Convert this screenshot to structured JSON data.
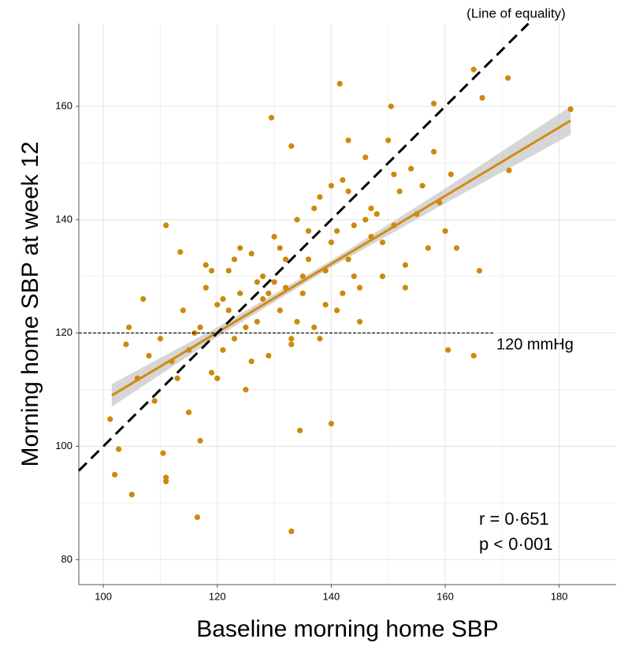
{
  "chart_data": {
    "type": "scatter",
    "x_label": "Baseline morning home SBP",
    "y_label": "Morning home SBP at week 12",
    "color": "#cc8a0c",
    "fit_color": "#d18b12",
    "band_color": "#c8c8c8",
    "xlim": [
      95.7,
      190
    ],
    "ylim": [
      75.6,
      174.6
    ],
    "xticks": [
      100,
      120,
      140,
      160,
      180
    ],
    "yticks": [
      80,
      100,
      120,
      140,
      160
    ],
    "grid": true,
    "minor_grid": true,
    "x": [
      101.2,
      102,
      102.7,
      105,
      116.5,
      133,
      129.5,
      141.5,
      150.5,
      158,
      165,
      171,
      182,
      166.5,
      171.2,
      160.5,
      165,
      166,
      111,
      111,
      110.5,
      111,
      113.5,
      107,
      104.5,
      104,
      140,
      134.5,
      133,
      143,
      106,
      108,
      109,
      110,
      112,
      113,
      114,
      115,
      116,
      117,
      118,
      119,
      120,
      121,
      122,
      123,
      124,
      125,
      126,
      127,
      128,
      129,
      130,
      131,
      132,
      133,
      134,
      135,
      136,
      137,
      138,
      139,
      140,
      141,
      142,
      143,
      144,
      145,
      146,
      147,
      148,
      149,
      150,
      151,
      152,
      153,
      154,
      155,
      156,
      157,
      158,
      159,
      160,
      161,
      162,
      115,
      117,
      119,
      121,
      123,
      125,
      127,
      129,
      131,
      133,
      135,
      137,
      139,
      141,
      143,
      145,
      147,
      149,
      151,
      153,
      118,
      120,
      122,
      124,
      126,
      128,
      130,
      132,
      134,
      136,
      138,
      140,
      142,
      144,
      146
    ],
    "values": [
      104.8,
      95,
      99.5,
      91.5,
      87.5,
      85,
      158,
      164,
      160,
      160.5,
      166.5,
      165,
      159.5,
      161.5,
      148.7,
      117,
      116,
      131,
      94.5,
      93.8,
      98.8,
      139,
      134.3,
      126,
      121,
      118,
      104,
      102.8,
      153,
      154,
      112,
      116,
      108,
      119,
      115,
      112,
      124,
      106,
      120,
      101,
      128,
      113,
      125,
      117,
      131,
      119,
      127,
      110,
      134,
      122,
      130,
      116,
      137,
      124,
      128,
      119,
      140,
      127,
      133,
      121,
      144,
      131,
      136,
      124,
      147,
      133,
      139,
      128,
      151,
      137,
      141,
      130,
      154,
      139,
      145,
      132,
      149,
      141,
      146,
      135,
      152,
      143,
      138,
      148,
      135,
      117,
      121,
      131,
      126,
      133,
      121,
      129,
      127,
      135,
      118,
      130,
      142,
      125,
      138,
      145,
      122,
      142,
      136,
      148,
      128,
      132,
      112,
      124,
      135,
      115,
      126,
      129,
      133,
      122,
      138,
      119,
      146,
      127,
      130,
      140
    ],
    "fit": {
      "x": [
        101.5,
        120,
        140,
        160,
        182
      ],
      "y": [
        109,
        120.1,
        132.2,
        144.2,
        157.5
      ],
      "lower": [
        107,
        119.3,
        131.6,
        142.9,
        155
      ],
      "upper": [
        111,
        121,
        132.8,
        145.5,
        160
      ]
    },
    "equality_line": {
      "x": [
        95.7,
        174.6
      ],
      "y": [
        95.7,
        174.6
      ],
      "label": "(Line of equality)"
    },
    "hline": {
      "y": 120,
      "x": [
        95.7,
        168.5
      ],
      "label": "120 mmHg"
    },
    "annotations": [
      "r = 0·651",
      "p < 0·001"
    ]
  }
}
